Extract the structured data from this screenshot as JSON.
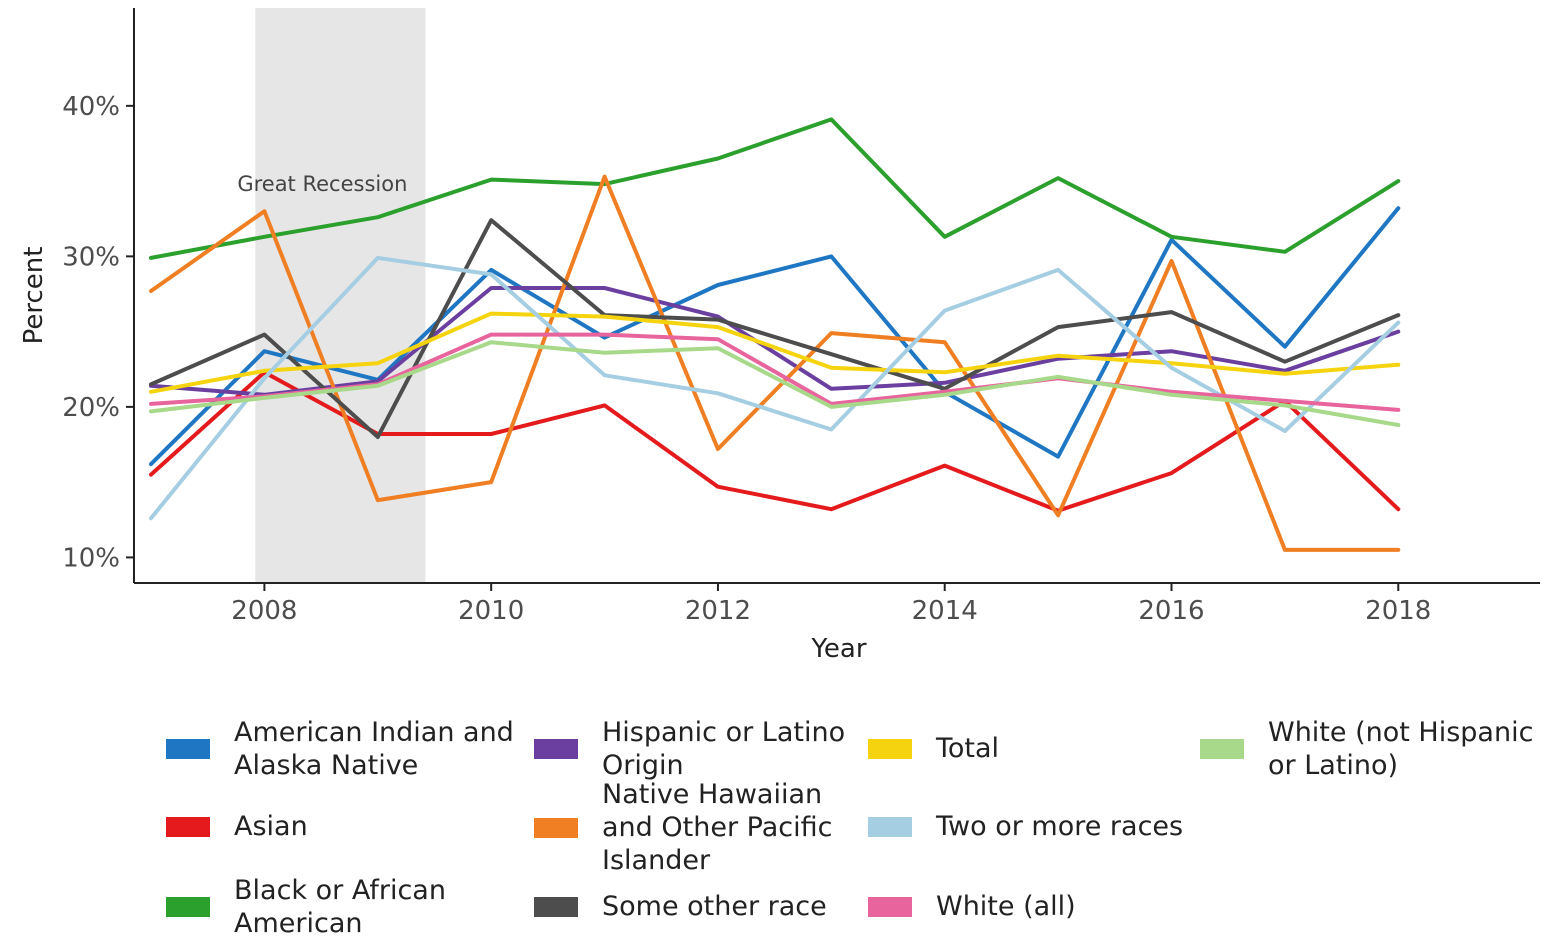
{
  "chart_data": {
    "type": "line",
    "xlabel": "Year",
    "ylabel": "Percent",
    "x": [
      2007,
      2008,
      2009,
      2010,
      2011,
      2012,
      2013,
      2014,
      2015,
      2016,
      2017,
      2018
    ],
    "xlim": [
      2006.85,
      2019.25
    ],
    "ylim": [
      8.3,
      46.5
    ],
    "x_ticks": [
      2008,
      2010,
      2012,
      2014,
      2016,
      2018
    ],
    "x_tick_labels": [
      "2008",
      "2010",
      "2012",
      "2014",
      "2016",
      "2018"
    ],
    "y_ticks": [
      10,
      20,
      30,
      40
    ],
    "y_tick_labels": [
      "10%",
      "20%",
      "30%",
      "40%"
    ],
    "grid": false,
    "legend_position": "bottom",
    "annotation": {
      "text": "Great Recession",
      "shaded_region_years": [
        2007.92,
        2009.42
      ],
      "shade_color": "#e6e6e6"
    },
    "series": [
      {
        "name": "American Indian and Alaska Native",
        "color": "#1f77c4",
        "values": [
          16.2,
          23.7,
          21.8,
          29.1,
          24.6,
          28.1,
          30.0,
          21.0,
          16.7,
          31.1,
          24.0,
          33.2
        ]
      },
      {
        "name": "Asian",
        "color": "#e41a1c",
        "values": [
          15.5,
          22.3,
          18.2,
          18.2,
          20.1,
          14.7,
          13.2,
          16.1,
          13.1,
          15.6,
          20.4,
          13.2
        ]
      },
      {
        "name": "Black or African American",
        "color": "#2ca02c",
        "values": [
          29.9,
          31.3,
          32.6,
          35.1,
          34.8,
          36.5,
          39.1,
          31.3,
          35.2,
          31.3,
          30.3,
          35.0
        ]
      },
      {
        "name": "Hispanic or Latino Origin",
        "color": "#6a3fa0",
        "values": [
          21.4,
          20.8,
          21.7,
          27.9,
          27.9,
          26.0,
          21.2,
          21.6,
          23.2,
          23.7,
          22.4,
          25.0
        ]
      },
      {
        "name": "Native Hawaiian and Other Pacific Islander",
        "color": "#f07f24",
        "values": [
          27.7,
          33.0,
          13.8,
          15.0,
          35.3,
          17.2,
          24.9,
          24.3,
          12.8,
          29.7,
          10.5,
          10.5
        ]
      },
      {
        "name": "Some other race",
        "color": "#4d4d4d",
        "values": [
          21.5,
          24.8,
          18.0,
          32.4,
          26.1,
          25.8,
          23.5,
          21.2,
          25.3,
          26.3,
          23.0,
          26.1
        ]
      },
      {
        "name": "Total",
        "color": "#f5d40f",
        "values": [
          21.0,
          22.4,
          22.9,
          26.2,
          26.0,
          25.3,
          22.6,
          22.3,
          23.4,
          22.9,
          22.2,
          22.8
        ]
      },
      {
        "name": "Two or more races",
        "color": "#a6cee3",
        "values": [
          12.6,
          21.9,
          29.9,
          28.8,
          22.1,
          20.9,
          18.5,
          26.4,
          29.1,
          22.6,
          18.4,
          25.6
        ]
      },
      {
        "name": "White (all)",
        "color": "#e8649c",
        "values": [
          20.2,
          20.7,
          21.5,
          24.8,
          24.8,
          24.5,
          20.2,
          21.0,
          21.9,
          21.0,
          20.4,
          19.8
        ]
      },
      {
        "name": "White (not Hispanic or Latino)",
        "color": "#a8d98a",
        "values": [
          19.7,
          20.6,
          21.4,
          24.3,
          23.6,
          23.9,
          20.0,
          20.8,
          22.0,
          20.8,
          20.1,
          18.8
        ]
      }
    ]
  },
  "legend": {
    "items": [
      {
        "label_line1": "American Indian and",
        "label_line2": "Alaska Native",
        "label_line3": ""
      },
      {
        "label_line1": "Asian",
        "label_line2": "",
        "label_line3": ""
      },
      {
        "label_line1": "Black or African",
        "label_line2": "American",
        "label_line3": ""
      },
      {
        "label_line1": "Hispanic or Latino",
        "label_line2": "Origin",
        "label_line3": ""
      },
      {
        "label_line1": "Native Hawaiian",
        "label_line2": "and Other Pacific",
        "label_line3": "Islander"
      },
      {
        "label_line1": "Some other race",
        "label_line2": "",
        "label_line3": ""
      },
      {
        "label_line1": "Total",
        "label_line2": "",
        "label_line3": ""
      },
      {
        "label_line1": "Two or more races",
        "label_line2": "",
        "label_line3": ""
      },
      {
        "label_line1": "White (all)",
        "label_line2": "",
        "label_line3": ""
      },
      {
        "label_line1": "White (not Hispanic",
        "label_line2": "or Latino)",
        "label_line3": ""
      }
    ]
  }
}
